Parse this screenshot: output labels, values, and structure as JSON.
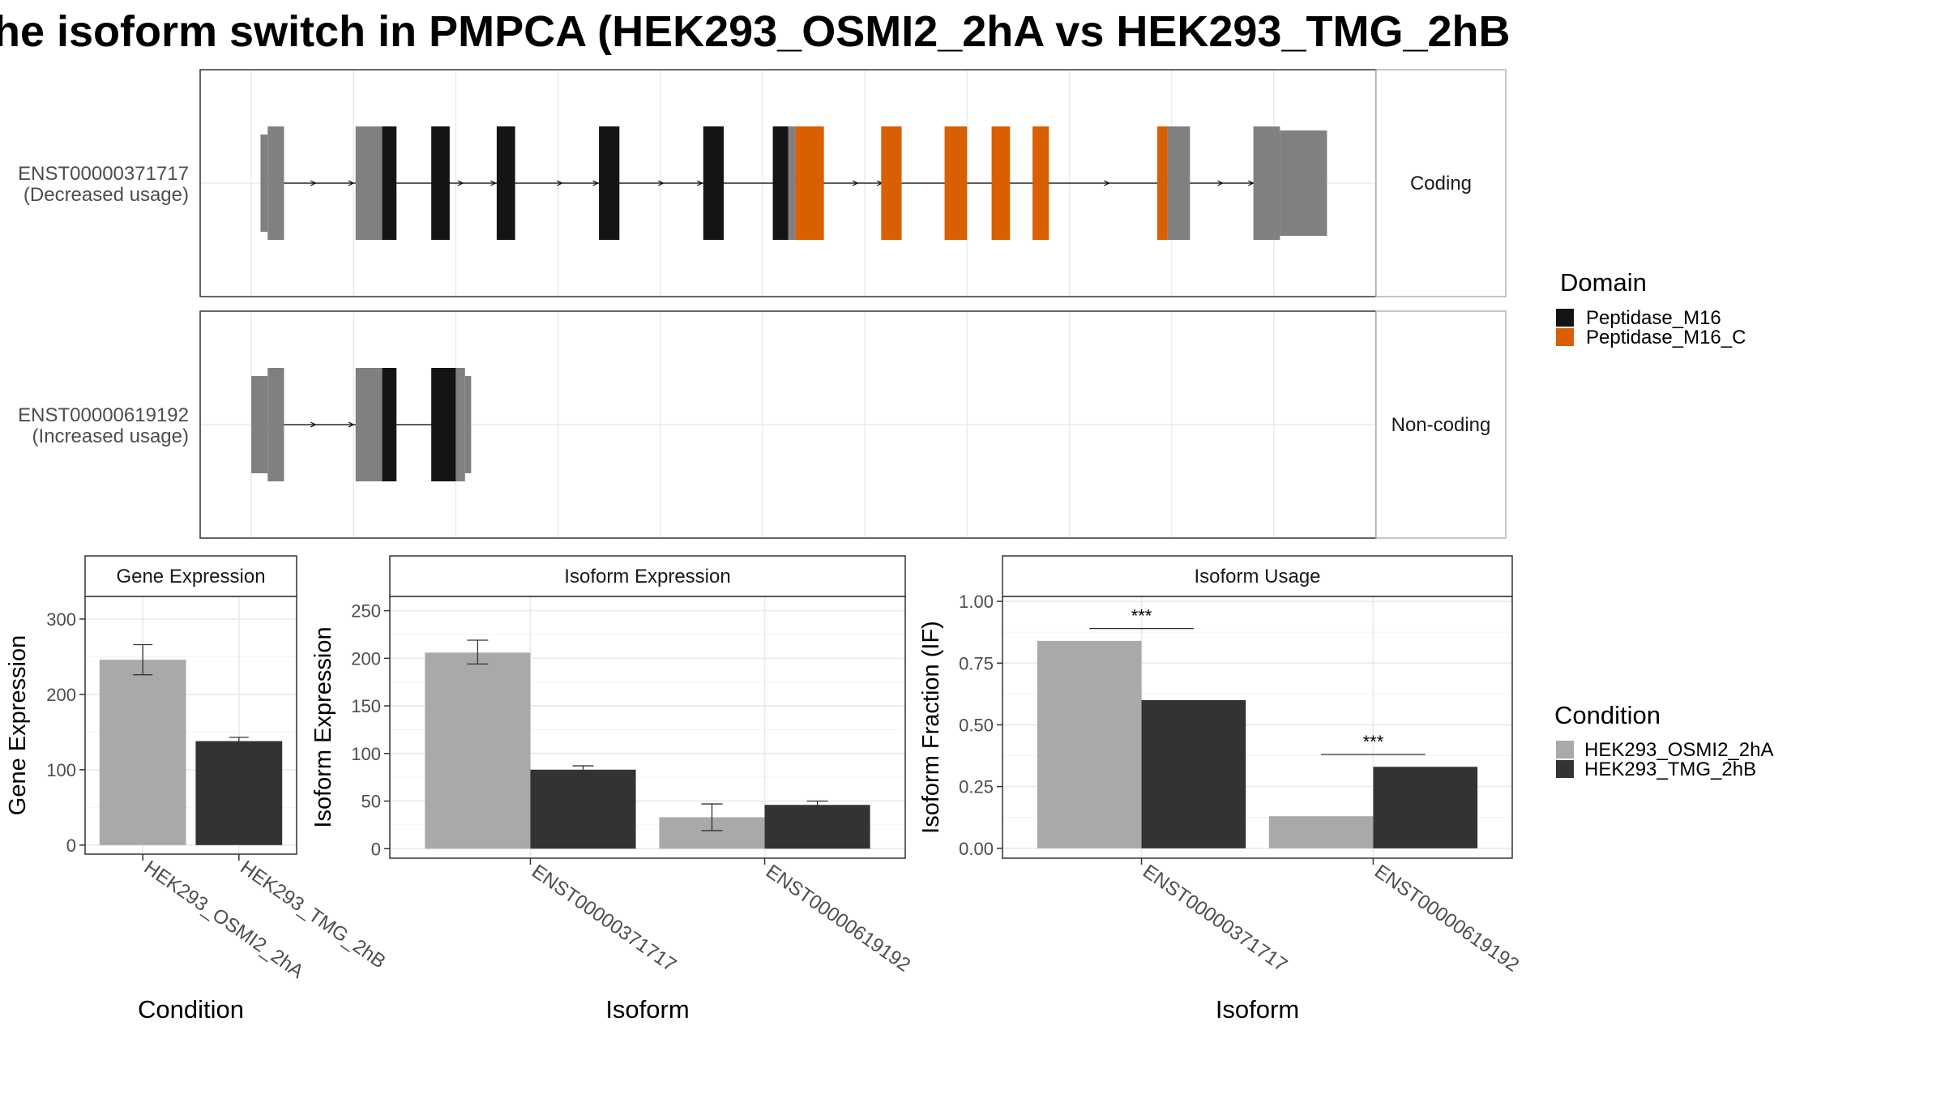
{
  "title": "he isoform switch in PMPCA (HEK293_OSMI2_2hA vs HEK293_TMG_2hB",
  "colors": {
    "utr": "#808080",
    "cds": "#141414",
    "domain_peptidase_m16": "#141414",
    "domain_peptidase_m16_c": "#D95F02",
    "cond_a": "#A9A9A9",
    "cond_b": "#333333",
    "grid": "#EBEBEB",
    "panel_border": "#333333",
    "strip_border": "#B3B3B3"
  },
  "structure": {
    "x_range": [
      -0.5,
      11.0
    ],
    "transcripts": [
      {
        "name": "ENST00000371717",
        "usage": "(Decreased usage)",
        "type_label": "Coding",
        "line": [
          0.1,
          10.0
        ],
        "blocks": [
          {
            "x0": 0.09,
            "x1": 0.16,
            "kind": "utr",
            "size": "small"
          },
          {
            "x0": 0.16,
            "x1": 0.32,
            "kind": "utr",
            "size": "large"
          },
          {
            "x0": 1.02,
            "x1": 1.28,
            "kind": "utr",
            "size": "large"
          },
          {
            "x0": 1.28,
            "x1": 1.42,
            "kind": "domain_peptidase_m16",
            "size": "large"
          },
          {
            "x0": 1.76,
            "x1": 1.94,
            "kind": "domain_peptidase_m16",
            "size": "large"
          },
          {
            "x0": 2.4,
            "x1": 2.58,
            "kind": "domain_peptidase_m16",
            "size": "large"
          },
          {
            "x0": 3.4,
            "x1": 3.6,
            "kind": "domain_peptidase_m16",
            "size": "large"
          },
          {
            "x0": 4.42,
            "x1": 4.62,
            "kind": "domain_peptidase_m16",
            "size": "large"
          },
          {
            "x0": 5.1,
            "x1": 5.25,
            "kind": "domain_peptidase_m16",
            "size": "large"
          },
          {
            "x0": 5.25,
            "x1": 5.32,
            "kind": "utr",
            "size": "large"
          },
          {
            "x0": 5.32,
            "x1": 5.6,
            "kind": "domain_peptidase_m16_c",
            "size": "large"
          },
          {
            "x0": 6.16,
            "x1": 6.36,
            "kind": "domain_peptidase_m16_c",
            "size": "large"
          },
          {
            "x0": 6.78,
            "x1": 7.0,
            "kind": "domain_peptidase_m16_c",
            "size": "large"
          },
          {
            "x0": 7.24,
            "x1": 7.42,
            "kind": "domain_peptidase_m16_c",
            "size": "large"
          },
          {
            "x0": 7.64,
            "x1": 7.8,
            "kind": "domain_peptidase_m16_c",
            "size": "large"
          },
          {
            "x0": 8.86,
            "x1": 8.96,
            "kind": "domain_peptidase_m16_c",
            "size": "large"
          },
          {
            "x0": 8.96,
            "x1": 9.18,
            "kind": "utr",
            "size": "large"
          },
          {
            "x0": 9.8,
            "x1": 10.06,
            "kind": "utr",
            "size": "large"
          },
          {
            "x0": 10.06,
            "x1": 10.52,
            "kind": "utr",
            "size": "mid"
          }
        ],
        "arrows": [
          0.62,
          0.99,
          2.06,
          2.38,
          3.03,
          3.38,
          4.02,
          4.4,
          5.92,
          6.16,
          8.38,
          8.9,
          9.49,
          9.79
        ]
      },
      {
        "name": "ENST00000619192",
        "usage": "(Increased usage)",
        "type_label": "Non-coding",
        "line": [
          0.1,
          1.9
        ],
        "blocks": [
          {
            "x0": 0.0,
            "x1": 0.16,
            "kind": "utr",
            "size": "small"
          },
          {
            "x0": 0.16,
            "x1": 0.32,
            "kind": "utr",
            "size": "large"
          },
          {
            "x0": 1.02,
            "x1": 1.28,
            "kind": "utr",
            "size": "large"
          },
          {
            "x0": 1.28,
            "x1": 1.42,
            "kind": "domain_peptidase_m16",
            "size": "large"
          },
          {
            "x0": 1.76,
            "x1": 2.0,
            "kind": "domain_peptidase_m16",
            "size": "large"
          },
          {
            "x0": 2.0,
            "x1": 2.09,
            "kind": "utr",
            "size": "large"
          },
          {
            "x0": 2.09,
            "x1": 2.15,
            "kind": "utr",
            "size": "small"
          }
        ],
        "arrows": [
          0.62,
          0.99
        ]
      }
    ]
  },
  "domain_legend": {
    "title": "Domain",
    "items": [
      {
        "label": "Peptidase_M16",
        "color_key": "domain_peptidase_m16"
      },
      {
        "label": "Peptidase_M16_C",
        "color_key": "domain_peptidase_m16_c"
      }
    ]
  },
  "condition_legend": {
    "title": "Condition",
    "items": [
      {
        "label": "HEK293_OSMI2_2hA",
        "color_key": "cond_a"
      },
      {
        "label": "HEK293_TMG_2hB",
        "color_key": "cond_b"
      }
    ]
  },
  "chart_data": [
    {
      "type": "bar",
      "strip": "Gene Expression",
      "xlabel": "Condition",
      "ylabel": "Gene Expression",
      "ylim": [
        -12,
        330
      ],
      "yticks": [
        0,
        100,
        200,
        300
      ],
      "categories": [
        "HEK293_OSMI2_2hA",
        "HEK293_TMG_2hB"
      ],
      "values": [
        246,
        138
      ],
      "errors": [
        [
          226,
          266
        ],
        [
          134,
          143
        ]
      ],
      "grouped": false
    },
    {
      "type": "bar",
      "strip": "Isoform Expression",
      "xlabel": "Isoform",
      "ylabel": "Isoform Expression",
      "ylim": [
        -10,
        265
      ],
      "yticks": [
        0,
        50,
        100,
        150,
        200,
        250
      ],
      "categories": [
        "ENST00000371717",
        "ENST00000619192"
      ],
      "series": [
        {
          "name": "HEK293_OSMI2_2hA",
          "values": [
            206,
            33
          ],
          "errors": [
            [
              194,
              219
            ],
            [
              19,
              47
            ]
          ]
        },
        {
          "name": "HEK293_TMG_2hB",
          "values": [
            83,
            46
          ],
          "errors": [
            [
              79,
              87
            ],
            [
              43,
              50
            ]
          ]
        }
      ],
      "grouped": true
    },
    {
      "type": "bar",
      "strip": "Isoform Usage",
      "xlabel": "Isoform",
      "ylabel": "Isoform Fraction (IF)",
      "ylim": [
        -0.04,
        1.02
      ],
      "yticks": [
        0.0,
        0.25,
        0.5,
        0.75,
        1.0
      ],
      "ytick_labels": [
        "0.00",
        "0.25",
        "0.50",
        "0.75",
        "1.00"
      ],
      "categories": [
        "ENST00000371717",
        "ENST00000619192"
      ],
      "series": [
        {
          "name": "HEK293_OSMI2_2hA",
          "values": [
            0.84,
            0.13
          ]
        },
        {
          "name": "HEK293_TMG_2hB",
          "values": [
            0.6,
            0.33
          ]
        }
      ],
      "significance": [
        {
          "category_index": 0,
          "label": "***",
          "y": 0.89
        },
        {
          "category_index": 1,
          "label": "***",
          "y": 0.38
        }
      ],
      "grouped": true
    }
  ]
}
